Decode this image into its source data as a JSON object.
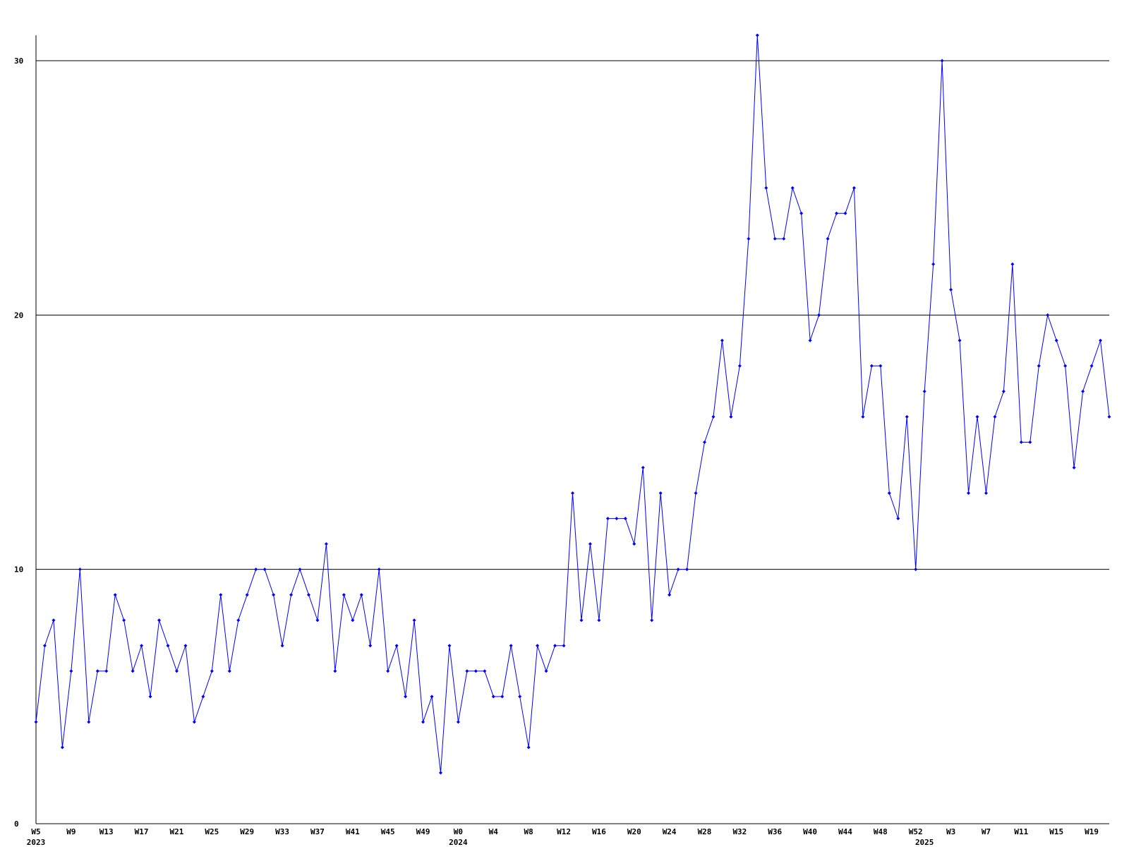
{
  "chart_data": {
    "type": "line",
    "categories": [
      "W5",
      null,
      null,
      null,
      "W9",
      null,
      null,
      null,
      "W13",
      null,
      null,
      null,
      "W17",
      null,
      null,
      null,
      "W21",
      null,
      null,
      null,
      "W25",
      null,
      null,
      null,
      "W29",
      null,
      null,
      null,
      "W33",
      null,
      null,
      null,
      "W37",
      null,
      null,
      null,
      "W41",
      null,
      null,
      null,
      "W45",
      null,
      null,
      null,
      "W49",
      null,
      null,
      null,
      "W0",
      null,
      null,
      null,
      "W4",
      null,
      null,
      null,
      "W8",
      null,
      null,
      null,
      "W12",
      null,
      null,
      null,
      "W16",
      null,
      null,
      null,
      "W20",
      null,
      null,
      null,
      "W24",
      null,
      null,
      null,
      "W28",
      null,
      null,
      null,
      "W32",
      null,
      null,
      null,
      "W36",
      null,
      null,
      null,
      "W40",
      null,
      null,
      null,
      "W44",
      null,
      null,
      null,
      "W48",
      null,
      null,
      null,
      "W52",
      null,
      null,
      null,
      "W3",
      null,
      null,
      null,
      "W7",
      null,
      null,
      null,
      "W11",
      null,
      null,
      null,
      "W15",
      null,
      null,
      null,
      "W19",
      null,
      null
    ],
    "year_labels": [
      "2023",
      null,
      null,
      null,
      null,
      null,
      null,
      null,
      null,
      null,
      null,
      null,
      null,
      null,
      null,
      null,
      null,
      null,
      null,
      null,
      null,
      null,
      null,
      null,
      null,
      null,
      null,
      null,
      null,
      null,
      null,
      null,
      null,
      null,
      null,
      null,
      null,
      null,
      null,
      null,
      null,
      null,
      null,
      null,
      null,
      null,
      null,
      null,
      "2024",
      null,
      null,
      null,
      null,
      null,
      null,
      null,
      null,
      null,
      null,
      null,
      null,
      null,
      null,
      null,
      null,
      null,
      null,
      null,
      null,
      null,
      null,
      null,
      null,
      null,
      null,
      null,
      null,
      null,
      null,
      null,
      null,
      null,
      null,
      null,
      null,
      null,
      null,
      null,
      null,
      null,
      null,
      null,
      null,
      null,
      null,
      null,
      null,
      null,
      null,
      null,
      null,
      "2025",
      null,
      null,
      null,
      null,
      null,
      null,
      null,
      null,
      null,
      null,
      null,
      null,
      null,
      null,
      null,
      null,
      null,
      null,
      null,
      null,
      null
    ],
    "series": [
      {
        "color": "#0000ff",
        "values": [
          4,
          7,
          8,
          3,
          6,
          10,
          4,
          6,
          6,
          9,
          8,
          6,
          7,
          5,
          8,
          7,
          6,
          7,
          4,
          5,
          6,
          9,
          6,
          8,
          9,
          10,
          10,
          9,
          7,
          9,
          10,
          9,
          8,
          11,
          6,
          9,
          8,
          9,
          7,
          10,
          6,
          7,
          5,
          8,
          4,
          5,
          2,
          7,
          4,
          6,
          6,
          6,
          5,
          5,
          7,
          5,
          3,
          7,
          6,
          7,
          7,
          13,
          8,
          11,
          8,
          12,
          12,
          12,
          11,
          14,
          8,
          13,
          9,
          10,
          10,
          13,
          15,
          16,
          19,
          16,
          18,
          23,
          31,
          25,
          23,
          23,
          25,
          24,
          19,
          20,
          23,
          24,
          24,
          25,
          16,
          18,
          18,
          13,
          12,
          16,
          10,
          17,
          22,
          30,
          21,
          19,
          13,
          16,
          13,
          16,
          17,
          22,
          15,
          15,
          18,
          20,
          19,
          18,
          14,
          17,
          18,
          19,
          16
        ]
      }
    ],
    "ylim": [
      0,
      31
    ],
    "yticks": [
      0,
      10,
      20,
      30
    ],
    "grid": true
  }
}
